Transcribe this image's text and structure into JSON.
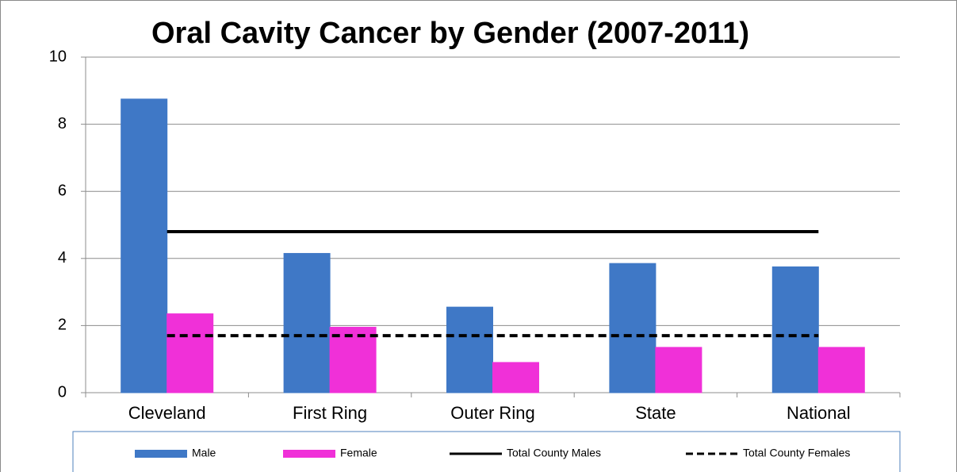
{
  "chart_data": {
    "type": "bar",
    "title": "Oral Cavity Cancer by Gender (2007-2011)",
    "categories": [
      "Cleveland",
      "First Ring",
      "Outer Ring",
      "State",
      "National"
    ],
    "series": [
      {
        "name": "Male",
        "type": "bar",
        "color": "#3f78c6",
        "values": [
          8.75,
          4.15,
          2.55,
          3.85,
          3.75
        ]
      },
      {
        "name": "Female",
        "type": "bar",
        "color": "#f030d8",
        "values": [
          2.35,
          1.95,
          0.9,
          1.35,
          1.35
        ]
      },
      {
        "name": "Total County Males",
        "type": "line",
        "color": "#000000",
        "dashed": false,
        "values": [
          4.8,
          4.8,
          4.8,
          4.8,
          4.8
        ]
      },
      {
        "name": "Total County Females",
        "type": "line",
        "color": "#000000",
        "dashed": true,
        "values": [
          1.7,
          1.7,
          1.7,
          1.7,
          1.7
        ]
      }
    ],
    "ylim": [
      0,
      10
    ],
    "yticks": [
      0,
      2,
      4,
      6,
      8,
      10
    ],
    "grid": true,
    "legend": "bottom"
  }
}
